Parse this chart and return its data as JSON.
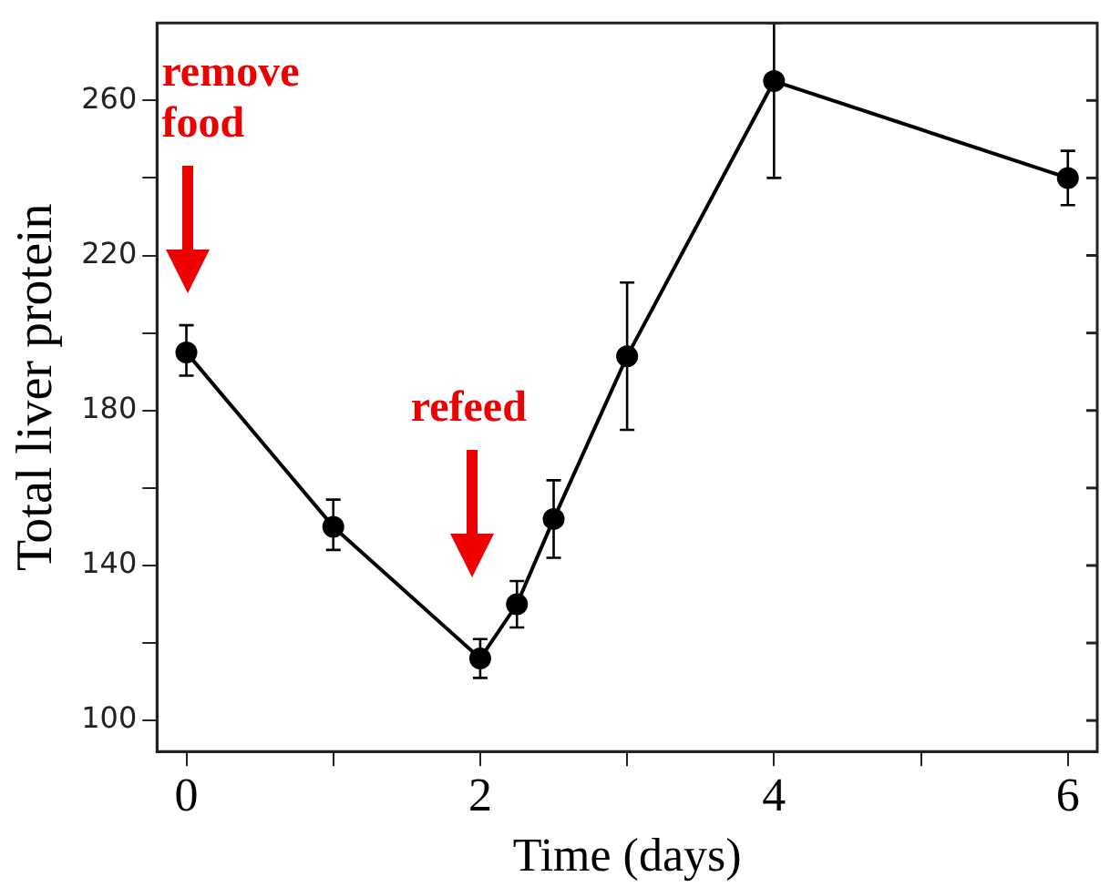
{
  "chart_data": {
    "type": "line",
    "xlabel": "Time (days)",
    "ylabel": "Total liver protein",
    "x": [
      0,
      1,
      2,
      2.25,
      2.5,
      3,
      4,
      6
    ],
    "series": [
      {
        "color": "#000000",
        "values": [
          195,
          150,
          116,
          130,
          152,
          194,
          265,
          240
        ],
        "errors": [
          [
            189,
            202
          ],
          [
            144,
            157
          ],
          [
            111,
            121
          ],
          [
            124,
            136
          ],
          [
            142,
            162
          ],
          [
            175,
            213
          ],
          [
            240,
            280
          ],
          [
            233,
            247
          ]
        ]
      }
    ],
    "xlim": [
      -0.2,
      6.2
    ],
    "ylim": [
      92,
      280
    ],
    "xticks": [
      0,
      {
        "value": 1,
        "label": null
      },
      2,
      {
        "value": 3,
        "label": null
      },
      4,
      {
        "value": 5,
        "label": null
      },
      6
    ],
    "yticks": [
      100,
      {
        "value": 120,
        "label": null
      },
      140,
      {
        "value": 160,
        "label": null
      },
      180,
      {
        "value": 200,
        "label": null
      },
      220,
      {
        "value": 240,
        "label": null
      },
      260
    ],
    "annotations": [
      "remove food",
      "refeed"
    ],
    "marker": "circle",
    "line_style": "solid",
    "grid": false,
    "legend": false
  }
}
